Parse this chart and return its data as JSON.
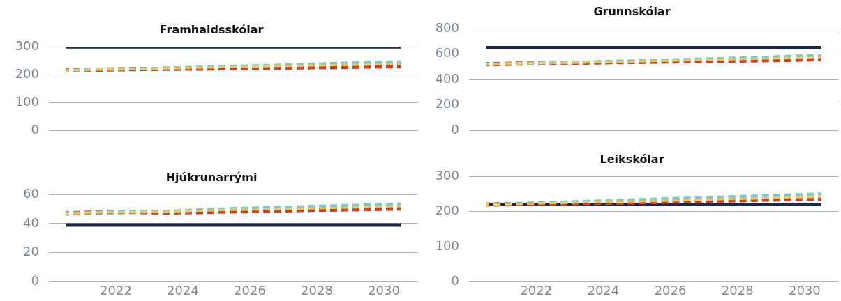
{
  "chart_data": [
    {
      "type": "line",
      "title": "Framhaldsskólar",
      "x": [
        2020.5,
        2021.5,
        2022.5,
        2023.5,
        2024.5,
        2025.5,
        2026.5,
        2027.5,
        2028.5,
        2029.5,
        2030.5
      ],
      "xlim": [
        2020,
        2031
      ],
      "xticks": [
        2022,
        2024,
        2026,
        2028,
        2030
      ],
      "ylim": [
        0,
        300
      ],
      "yticks": [
        0,
        100,
        200,
        300
      ],
      "tick_labels": "y",
      "grid": "y",
      "legend": false,
      "marker": "none",
      "series": [
        {
          "color": "#1b2a45",
          "line_style": "solid",
          "values": [
            300,
            300,
            300,
            300,
            300,
            300,
            300,
            300,
            300,
            300,
            300
          ]
        },
        {
          "color": "#c8432e",
          "line_style": "dashed",
          "values": [
            215,
            218,
            220,
            221,
            222,
            223,
            224,
            226,
            227,
            229,
            230
          ]
        },
        {
          "color": "#7fc6d0",
          "line_style": "dashed",
          "values": [
            215,
            219,
            221,
            224,
            227,
            230,
            233,
            236,
            240,
            243,
            246
          ]
        },
        {
          "color": "#e8c95a",
          "line_style": "dashed",
          "values": [
            215,
            219,
            221,
            223,
            225,
            228,
            230,
            232,
            234,
            236,
            239
          ]
        }
      ]
    },
    {
      "type": "line",
      "title": "Grunnskólar",
      "x": [
        2020.5,
        2021.5,
        2022.5,
        2023.5,
        2024.5,
        2025.5,
        2026.5,
        2027.5,
        2028.5,
        2029.5,
        2030.5
      ],
      "xlim": [
        2020,
        2031
      ],
      "xticks": [
        2022,
        2024,
        2026,
        2028,
        2030
      ],
      "ylim": [
        0,
        800
      ],
      "yticks": [
        0,
        200,
        400,
        600,
        800
      ],
      "tick_labels": "y",
      "grid": "y",
      "legend": false,
      "marker": "none",
      "series": [
        {
          "color": "#1b2a45",
          "line_style": "solid",
          "values": [
            650,
            650,
            650,
            650,
            650,
            650,
            650,
            650,
            650,
            650,
            650
          ]
        },
        {
          "color": "#c8432e",
          "line_style": "dashed",
          "values": [
            520,
            526,
            530,
            533,
            537,
            540,
            544,
            548,
            551,
            555,
            559
          ]
        },
        {
          "color": "#7fc6d0",
          "line_style": "dashed",
          "values": [
            520,
            527,
            532,
            537,
            544,
            551,
            558,
            565,
            573,
            582,
            591
          ]
        },
        {
          "color": "#e8c95a",
          "line_style": "dashed",
          "values": [
            520,
            527,
            531,
            535,
            540,
            546,
            551,
            557,
            563,
            569,
            576
          ]
        }
      ]
    },
    {
      "type": "line",
      "title": "Hjúkrunarrými",
      "x": [
        2020.5,
        2021.5,
        2022.5,
        2023.5,
        2024.5,
        2025.5,
        2026.5,
        2027.5,
        2028.5,
        2029.5,
        2030.5
      ],
      "xlim": [
        2020,
        2031
      ],
      "xticks": [
        2022,
        2024,
        2026,
        2028,
        2030
      ],
      "ylim": [
        0,
        60
      ],
      "yticks": [
        0,
        20,
        40,
        60
      ],
      "grid": "y",
      "legend": false,
      "marker": "none",
      "series": [
        {
          "color": "#1b2a45",
          "line_style": "solid",
          "values": [
            39,
            39,
            39,
            39,
            39,
            39,
            39,
            39,
            39,
            39,
            39
          ]
        },
        {
          "color": "#c8432e",
          "line_style": "dashed",
          "values": [
            47,
            47.8,
            48,
            47.6,
            47.9,
            48.4,
            48.7,
            49.3,
            49.6,
            50,
            50.4
          ]
        },
        {
          "color": "#7fc6d0",
          "line_style": "dashed",
          "values": [
            47,
            47.8,
            48,
            48.4,
            49.4,
            50.4,
            50.9,
            51.5,
            52.2,
            52.8,
            53.5
          ]
        },
        {
          "color": "#e8c95a",
          "line_style": "dashed",
          "values": [
            47,
            47.8,
            48,
            48.2,
            48.8,
            49.4,
            49.8,
            50.3,
            50.8,
            51.3,
            52
          ]
        }
      ]
    },
    {
      "type": "line",
      "title": "Leikskólar",
      "x": [
        2020.5,
        2021.5,
        2022.5,
        2023.5,
        2024.5,
        2025.5,
        2026.5,
        2027.5,
        2028.5,
        2029.5,
        2030.5
      ],
      "xlim": [
        2020,
        2031
      ],
      "xticks": [
        2022,
        2024,
        2026,
        2028,
        2030
      ],
      "ylim": [
        0,
        300
      ],
      "yticks": [
        0,
        100,
        200,
        300
      ],
      "grid": "y",
      "legend": false,
      "marker": "none",
      "series": [
        {
          "color": "#1b2a45",
          "line_style": "solid",
          "values": [
            220,
            220,
            220,
            220,
            220,
            220,
            220,
            220,
            220,
            220,
            220
          ]
        },
        {
          "color": "#c8432e",
          "line_style": "dashed",
          "values": [
            220,
            221,
            223,
            224,
            225,
            227,
            229,
            231,
            233,
            235,
            237
          ]
        },
        {
          "color": "#7fc6d0",
          "line_style": "dashed",
          "values": [
            220,
            223,
            226,
            229,
            232,
            235,
            238,
            241,
            244,
            247,
            250
          ]
        },
        {
          "color": "#e8c95a",
          "line_style": "dashed",
          "values": [
            220,
            222,
            224,
            226,
            228,
            230,
            232,
            235,
            237,
            240,
            242
          ]
        }
      ]
    }
  ]
}
